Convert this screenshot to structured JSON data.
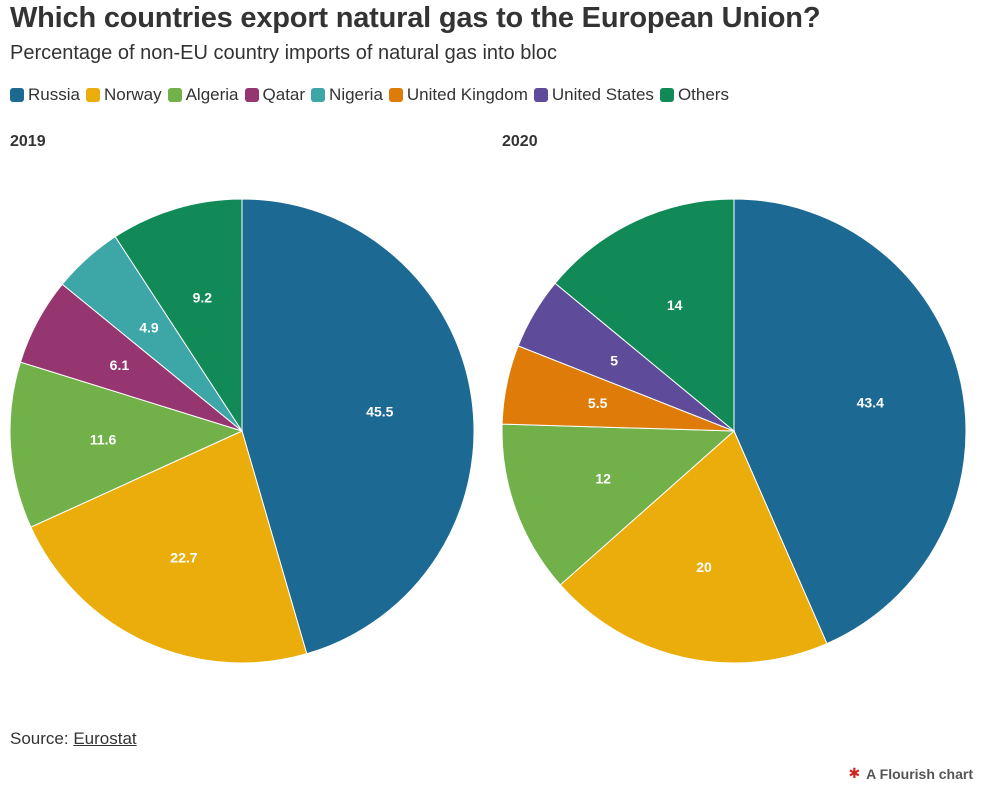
{
  "title": "Which countries export natural gas to the European Union?",
  "subtitle": "Percentage of non-EU country imports of natural gas into bloc",
  "legend": [
    {
      "label": "Russia",
      "color": "#1c6994"
    },
    {
      "label": "Norway",
      "color": "#ebad0c"
    },
    {
      "label": "Algeria",
      "color": "#72b04a"
    },
    {
      "label": "Qatar",
      "color": "#963671"
    },
    {
      "label": "Nigeria",
      "color": "#3da6a6"
    },
    {
      "label": "United Kingdom",
      "color": "#df7b08"
    },
    {
      "label": "United States",
      "color": "#5e4b99"
    },
    {
      "label": "Others",
      "color": "#128a57"
    }
  ],
  "chart_data": [
    {
      "type": "pie",
      "title": "2019",
      "slices": [
        {
          "label": "Russia",
          "value": 45.5,
          "display": "45.5"
        },
        {
          "label": "Norway",
          "value": 22.7,
          "display": "22.7"
        },
        {
          "label": "Algeria",
          "value": 11.6,
          "display": "11.6"
        },
        {
          "label": "Qatar",
          "value": 6.1,
          "display": "6.1"
        },
        {
          "label": "Nigeria",
          "value": 4.9,
          "display": "4.9"
        },
        {
          "label": "Others",
          "value": 9.2,
          "display": "9.2"
        }
      ]
    },
    {
      "type": "pie",
      "title": "2020",
      "slices": [
        {
          "label": "Russia",
          "value": 43.4,
          "display": "43.4"
        },
        {
          "label": "Norway",
          "value": 20,
          "display": "20"
        },
        {
          "label": "Algeria",
          "value": 12,
          "display": "12"
        },
        {
          "label": "United Kingdom",
          "value": 5.5,
          "display": "5.5"
        },
        {
          "label": "United States",
          "value": 5,
          "display": "5"
        },
        {
          "label": "Others",
          "value": 14,
          "display": "14"
        }
      ]
    }
  ],
  "source": {
    "prefix": "Source: ",
    "link_text": "Eurostat"
  },
  "brand": {
    "icon": "flourish-logo-icon",
    "label": "A Flourish chart"
  }
}
